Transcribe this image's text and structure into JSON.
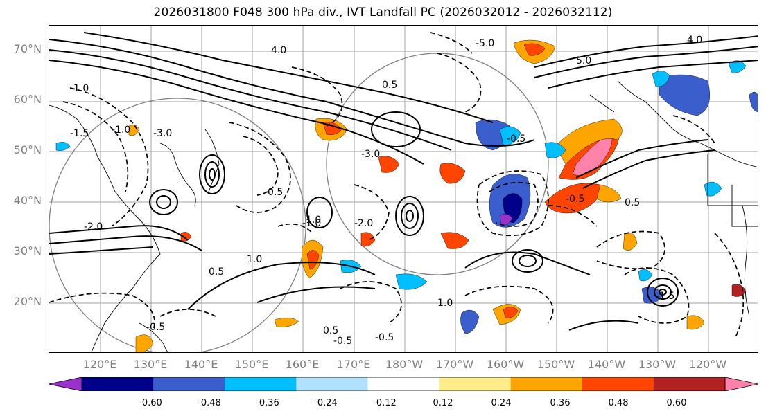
{
  "title": "2026031800 F048 300 hPa div., IVT Landfall PC (2026032012 - 2026032112)",
  "lat_labels": [
    "70°N",
    "60°N",
    "50°N",
    "40°N",
    "30°N",
    "20°N"
  ],
  "lon_labels": [
    "120°E",
    "130°E",
    "140°E",
    "150°E",
    "160°E",
    "170°E",
    "180°W",
    "170°W",
    "160°W",
    "150°W",
    "140°W",
    "130°W",
    "120°W"
  ],
  "contour_labels": [
    "-0.5",
    "-1.0",
    "-2.0",
    "-3.0",
    "0.5",
    "1.0",
    "-5.0",
    "5.0",
    "4.0",
    "-1.5"
  ],
  "colorbar": {
    "ticks": [
      "-0.60",
      "-0.48",
      "-0.36",
      "-0.24",
      "-0.12",
      "0.12",
      "0.24",
      "0.36",
      "0.48",
      "0.60"
    ],
    "colors": [
      "#9932cc",
      "#00008b",
      "#3a5fcd",
      "#00bfff",
      "#b0e2ff",
      "#ffffff",
      "#ffec8b",
      "#ffa500",
      "#ff4500",
      "#b22222",
      "#ff82ab"
    ]
  }
}
